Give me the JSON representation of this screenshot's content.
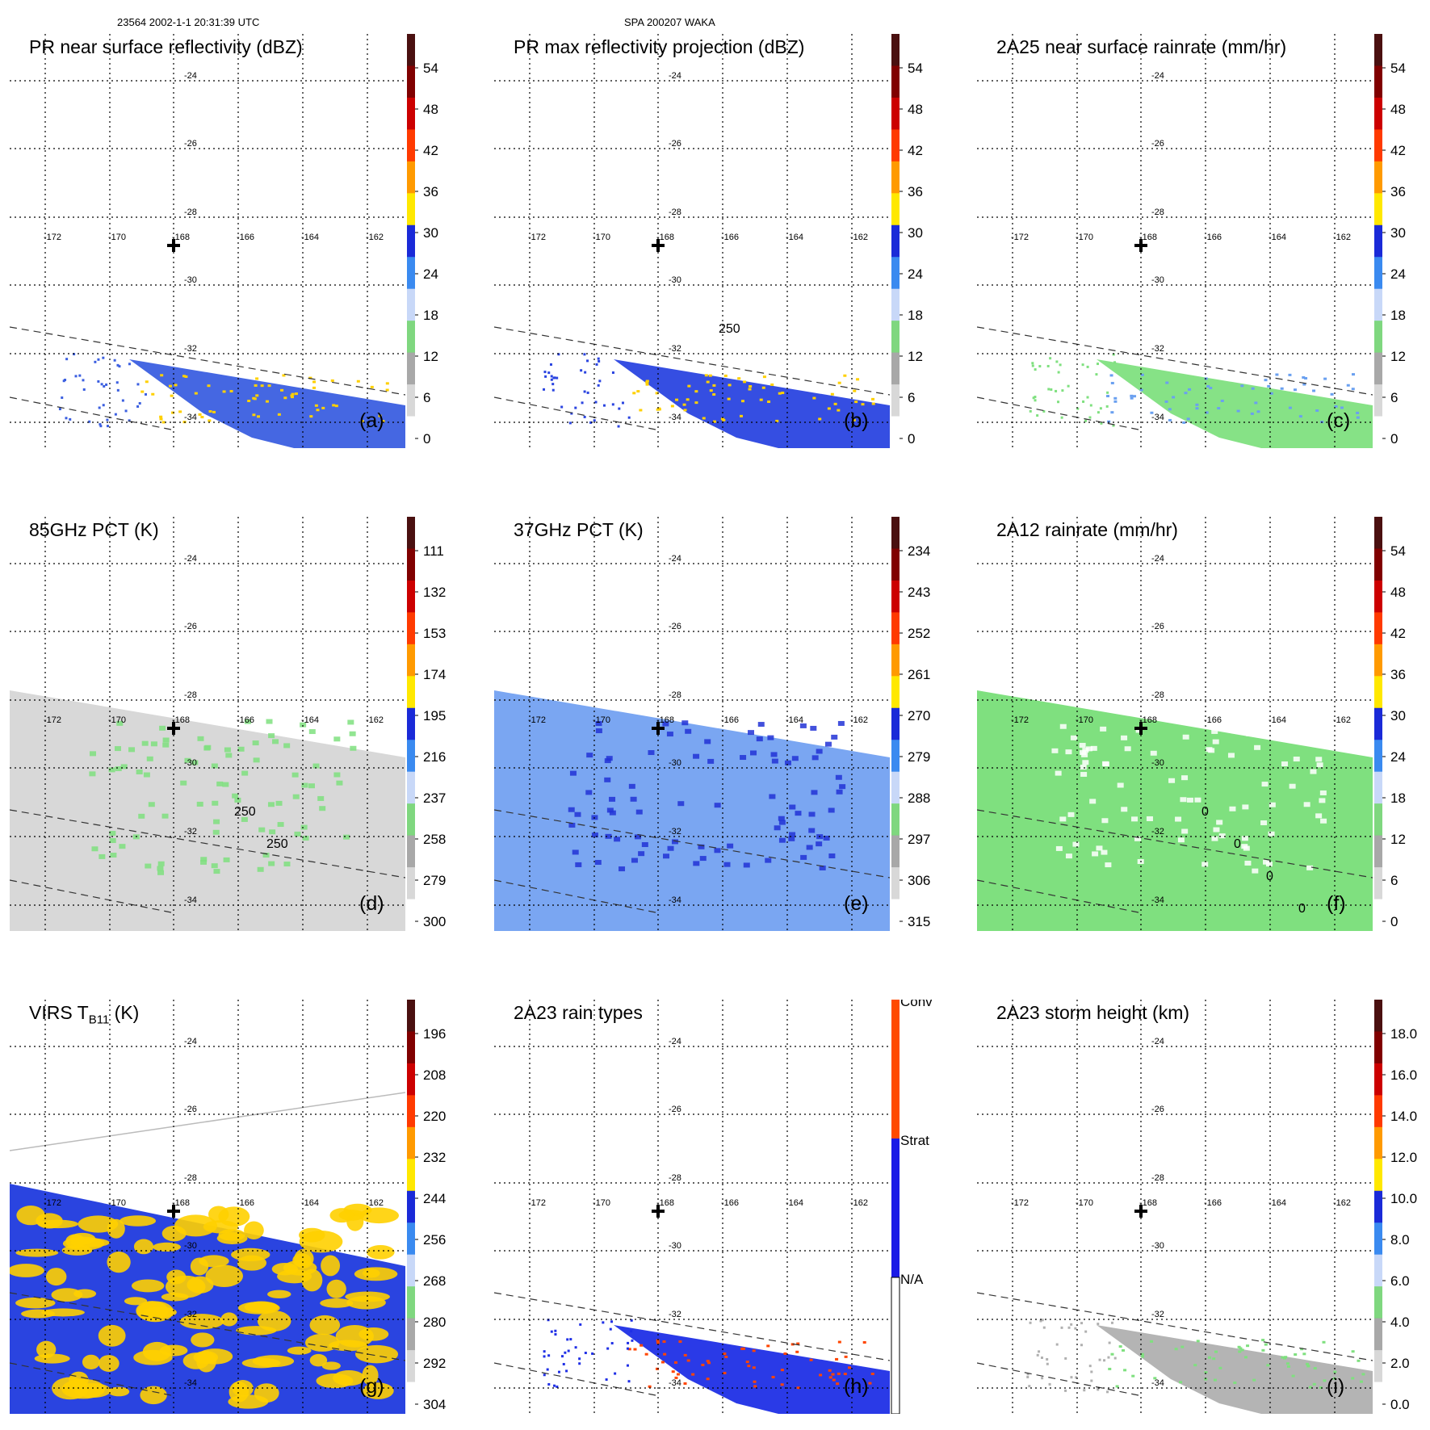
{
  "header": {
    "left": "23564 2002-1-1 20:31:39 UTC",
    "center": "SPA 200207 WAKA"
  },
  "lat_labels": [
    "-24",
    "-26",
    "-28",
    "-30",
    "-32",
    "-34"
  ],
  "lon_labels": [
    "-172",
    "-170",
    "-168",
    "-166",
    "-164",
    "-162"
  ],
  "panels": [
    {
      "title": "PR near surface reflectivity (dBZ)",
      "label": "(a)",
      "colorbar": {
        "labels": [
          "54",
          "48",
          "42",
          "36",
          "30",
          "24",
          "18",
          "12",
          "6",
          "0"
        ]
      },
      "field": {
        "kind": "swath_narrow",
        "base": "#3b5fe0",
        "accent": "#ffd000",
        "contour_low": []
      }
    },
    {
      "title": "PR max reflectivity projection (dBZ)",
      "label": "(b)",
      "colorbar": {
        "labels": [
          "54",
          "48",
          "42",
          "36",
          "30",
          "24",
          "18",
          "12",
          "6",
          "0"
        ]
      },
      "field": {
        "kind": "swath_narrow",
        "base": "#2a44e0",
        "accent": "#ffd000",
        "contour_low": [
          "250"
        ]
      }
    },
    {
      "title": "2A25 near surface rainrate (mm/hr)",
      "label": "(c)",
      "colorbar": {
        "labels": [
          "54",
          "48",
          "42",
          "36",
          "30",
          "24",
          "18",
          "12",
          "6",
          "0"
        ]
      },
      "field": {
        "kind": "swath_narrow",
        "base": "#7fe07f",
        "accent": "#6aa0f0",
        "contour_low": []
      }
    },
    {
      "title": "85GHz PCT (K)",
      "label": "(d)",
      "colorbar": {
        "labels": [
          "111",
          "132",
          "153",
          "174",
          "195",
          "216",
          "237",
          "258",
          "279",
          "300"
        ]
      },
      "field": {
        "kind": "swath_wide",
        "base": "#d8d8d8",
        "accent": "#7fe07f",
        "contour_low": [
          "250",
          "250"
        ]
      }
    },
    {
      "title": "37GHz PCT (K)",
      "label": "(e)",
      "colorbar": {
        "labels": [
          "234",
          "243",
          "252",
          "261",
          "270",
          "279",
          "288",
          "297",
          "306",
          "315"
        ]
      },
      "field": {
        "kind": "swath_wide",
        "base": "#7aa6f2",
        "accent": "#2233d6",
        "contour_low": []
      }
    },
    {
      "title": "2A12 rainrate (mm/hr)",
      "label": "(f)",
      "colorbar": {
        "labels": [
          "54",
          "48",
          "42",
          "36",
          "30",
          "24",
          "18",
          "12",
          "6",
          "0"
        ]
      },
      "field": {
        "kind": "swath_wide",
        "base": "#7fe07f",
        "accent": "#ffffff",
        "contour_low": [
          "0",
          "0",
          "0",
          "0"
        ]
      }
    },
    {
      "title_main": "VIRS T",
      "title_sub": "B11",
      "title_rest": " (K)",
      "label": "(g)",
      "colorbar": {
        "labels": [
          "196",
          "208",
          "220",
          "232",
          "244",
          "256",
          "268",
          "280",
          "292",
          "304"
        ]
      },
      "field": {
        "kind": "swath_virs",
        "base": "#2a44e0",
        "accent": "#ffd000",
        "contour_low": []
      }
    },
    {
      "title": "2A23 rain types",
      "label": "(h)",
      "colorbar": {
        "labels": [
          "Conv",
          "Strat",
          "N/A"
        ]
      },
      "field": {
        "kind": "swath_narrow",
        "base": "#1f2fe6",
        "accent": "#ff4500",
        "contour_low": []
      }
    },
    {
      "title": "2A23 storm height (km)",
      "label": "(i)",
      "colorbar": {
        "labels": [
          "18.0",
          "16.0",
          "14.0",
          "12.0",
          "10.0",
          "8.0",
          "6.0",
          "4.0",
          "2.0",
          "0.0"
        ]
      },
      "field": {
        "kind": "swath_narrow",
        "base": "#b0b0b0",
        "accent": "#7fe07f",
        "contour_low": []
      }
    }
  ],
  "colors": {
    "scale": [
      "#ffffff",
      "#d8d8d8",
      "#a8a8a8",
      "#7fd77f",
      "#c8d8f8",
      "#3a8af0",
      "#1a2ad8",
      "#ffe800",
      "#ff9a00",
      "#ff3a00",
      "#cc0000",
      "#800000",
      "#4a1010"
    ],
    "raintype": [
      "#ffffff",
      "#1a1ae6",
      "#ff4a00"
    ]
  },
  "chart_data": [
    {
      "type": "heatmap",
      "title": "PR near surface reflectivity (dBZ)",
      "panel": "(a)",
      "colorbar_ticks": [
        0,
        6,
        12,
        18,
        24,
        30,
        36,
        42,
        48,
        54
      ],
      "lat_range": [
        -34,
        -24
      ],
      "lon_range": [
        -172,
        -162
      ],
      "storm_center": {
        "lon": -168,
        "lat": -28.6
      }
    },
    {
      "type": "heatmap",
      "title": "PR max reflectivity projection (dBZ)",
      "panel": "(b)",
      "colorbar_ticks": [
        0,
        6,
        12,
        18,
        24,
        30,
        36,
        42,
        48,
        54
      ]
    },
    {
      "type": "heatmap",
      "title": "2A25 near surface rainrate (mm/hr)",
      "panel": "(c)",
      "colorbar_ticks": [
        0,
        6,
        12,
        18,
        24,
        30,
        36,
        42,
        48,
        54
      ]
    },
    {
      "type": "heatmap",
      "title": "85GHz PCT (K)",
      "panel": "(d)",
      "colorbar_ticks": [
        111,
        132,
        153,
        174,
        195,
        216,
        237,
        258,
        279,
        300
      ],
      "contour_levels": [
        250
      ]
    },
    {
      "type": "heatmap",
      "title": "37GHz PCT (K)",
      "panel": "(e)",
      "colorbar_ticks": [
        234,
        243,
        252,
        261,
        270,
        279,
        288,
        297,
        306,
        315
      ]
    },
    {
      "type": "heatmap",
      "title": "2A12 rainrate (mm/hr)",
      "panel": "(f)",
      "colorbar_ticks": [
        0,
        6,
        12,
        18,
        24,
        30,
        36,
        42,
        48,
        54
      ],
      "contour_levels": [
        0
      ]
    },
    {
      "type": "heatmap",
      "title": "VIRS TB11 (K)",
      "panel": "(g)",
      "colorbar_ticks": [
        196,
        208,
        220,
        232,
        244,
        256,
        268,
        280,
        292,
        304
      ]
    },
    {
      "type": "heatmap",
      "title": "2A23 rain types",
      "panel": "(h)",
      "categories": [
        "N/A",
        "Strat",
        "Conv"
      ]
    },
    {
      "type": "heatmap",
      "title": "2A23 storm height (km)",
      "panel": "(i)",
      "colorbar_ticks": [
        0.0,
        2.0,
        4.0,
        6.0,
        8.0,
        10.0,
        12.0,
        14.0,
        16.0,
        18.0
      ]
    }
  ]
}
